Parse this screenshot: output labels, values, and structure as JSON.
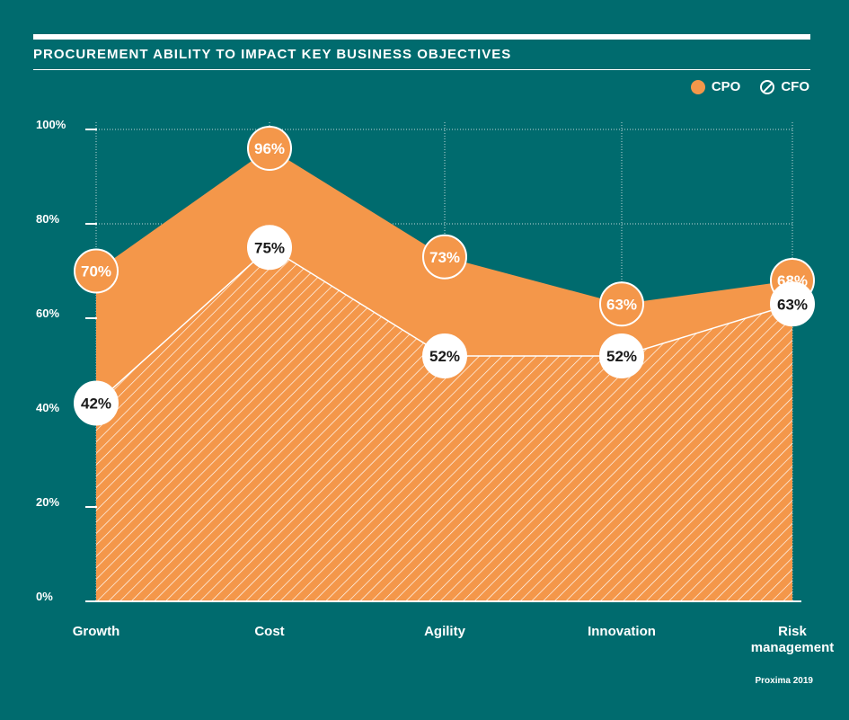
{
  "header": {
    "title": "PROCUREMENT ABILITY TO IMPACT KEY BUSINESS OBJECTIVES"
  },
  "legend": {
    "cpo_label": "CPO",
    "cfo_label": "CFO"
  },
  "source": "Proxima 2019",
  "colors": {
    "background": "#006b6e",
    "cpo": "#f4974a",
    "cfo_hatch": "#ffffff",
    "label_text_dark": "#1a1a1a"
  },
  "chart_data": {
    "type": "area",
    "categories": [
      "Growth",
      "Cost",
      "Agility",
      "Innovation",
      "Risk\nmanagement"
    ],
    "y_ticks": [
      "0%",
      "20%",
      "40%",
      "60%",
      "80%",
      "100%"
    ],
    "ylim": [
      0,
      100
    ],
    "grid": true,
    "legend_position": "top-right",
    "series": [
      {
        "name": "CPO",
        "values": [
          70,
          96,
          73,
          63,
          68
        ],
        "labels": [
          "70%",
          "96%",
          "73%",
          "63%",
          "68%"
        ]
      },
      {
        "name": "CFO",
        "values": [
          42,
          75,
          52,
          52,
          63
        ],
        "labels": [
          "42%",
          "75%",
          "52%",
          "52%",
          "63%"
        ]
      }
    ]
  }
}
